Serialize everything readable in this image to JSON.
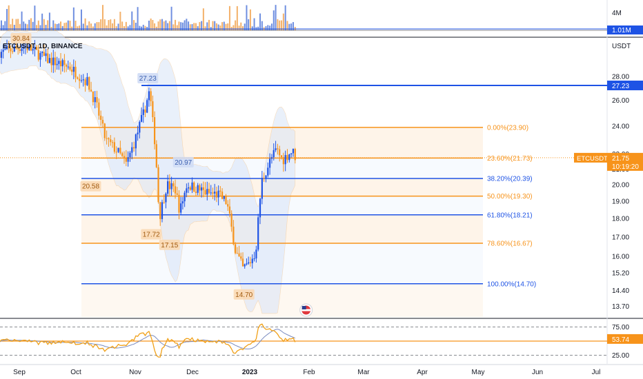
{
  "header": {
    "symbol_title": "ETCUSDT, 1D, BINANCE",
    "currency": "USDT"
  },
  "badges": {
    "symbol": "ETCUSDT",
    "last_price": "21.75",
    "countdown": "10:19:20",
    "level_price": "27.23",
    "volume": "1.01M",
    "rsi": "53.74"
  },
  "colors": {
    "orange": "#f7931a",
    "blue": "#1e53e5",
    "band_fill": "#d8e4f7",
    "zone_fill": "#fde7cf",
    "rsi_line": "#f0a018",
    "rsi_ma": "#7a8bbf"
  },
  "chart_data": {
    "type": "candlestick",
    "x_axis": {
      "ticks": [
        "Sep",
        "Oct",
        "Nov",
        "Dec",
        "2023",
        "Feb",
        "Mar",
        "Apr",
        "May",
        "Jun",
        "Jul"
      ]
    },
    "price_axis": {
      "scale": "log",
      "range": [
        13.2,
        31.5
      ],
      "ticks": [
        "28.00",
        "26.00",
        "24.00",
        "22.00",
        "21.00",
        "20.00",
        "19.00",
        "18.00",
        "17.00",
        "16.00",
        "15.20",
        "14.40",
        "13.70"
      ]
    },
    "volume_axis": {
      "ticks": [
        "4M"
      ]
    },
    "rsi_axis": {
      "ticks": [
        "75.00",
        "25.00"
      ],
      "bands": [
        75,
        25
      ],
      "mid": 50
    },
    "horizontal_level": 27.23,
    "last_price": 21.75,
    "fibonacci": [
      {
        "label": "0.00%(23.90)",
        "price": 23.9,
        "color": "orange"
      },
      {
        "label": "23.60%(21.73)",
        "price": 21.73,
        "color": "orange"
      },
      {
        "label": "38.20%(20.39)",
        "price": 20.39,
        "color": "blue"
      },
      {
        "label": "50.00%(19.30)",
        "price": 19.3,
        "color": "orange"
      },
      {
        "label": "61.80%(18.21)",
        "price": 18.21,
        "color": "blue"
      },
      {
        "label": "78.60%(16.67)",
        "price": 16.67,
        "color": "orange"
      },
      {
        "label": "100.00%(14.70)",
        "price": 14.7,
        "color": "blue"
      }
    ],
    "annotations": [
      {
        "text": "30.84",
        "price": 30.84,
        "month": 0.03
      },
      {
        "text": "27.23",
        "price": 27.23,
        "month": 2.22
      },
      {
        "text": "20.58",
        "price": 20.58,
        "month": 1.25
      },
      {
        "text": "20.97",
        "price": 20.97,
        "month": 2.84
      },
      {
        "text": "17.72",
        "price": 17.72,
        "month": 2.28
      },
      {
        "text": "17.15",
        "price": 17.15,
        "month": 2.6
      },
      {
        "text": "14.70",
        "price": 14.7,
        "month": 3.9
      }
    ],
    "price_path": [
      [
        -0.3,
        30.2
      ],
      [
        0.1,
        30.8
      ],
      [
        0.5,
        29.5
      ],
      [
        0.9,
        28.8
      ],
      [
        1.2,
        27.5
      ],
      [
        1.35,
        25.5
      ],
      [
        1.5,
        23.0
      ],
      [
        1.7,
        22.2
      ],
      [
        1.85,
        21.3
      ],
      [
        2.0,
        23.0
      ],
      [
        2.15,
        25.0
      ],
      [
        2.25,
        26.8
      ],
      [
        2.3,
        24.5
      ],
      [
        2.35,
        22.6
      ],
      [
        2.42,
        18.0
      ],
      [
        2.55,
        20.0
      ],
      [
        2.7,
        19.7
      ],
      [
        2.78,
        18.4
      ],
      [
        2.9,
        20.0
      ],
      [
        3.05,
        19.8
      ],
      [
        3.25,
        19.5
      ],
      [
        3.45,
        19.4
      ],
      [
        3.6,
        18.9
      ],
      [
        3.75,
        16.3
      ],
      [
        3.88,
        15.4
      ],
      [
        4.0,
        15.7
      ],
      [
        4.1,
        16.2
      ],
      [
        4.2,
        20.2
      ],
      [
        4.35,
        21.6
      ],
      [
        4.45,
        22.3
      ],
      [
        4.55,
        21.6
      ],
      [
        4.65,
        22.0
      ],
      [
        4.72,
        22.2
      ],
      [
        4.78,
        21.75
      ]
    ]
  }
}
